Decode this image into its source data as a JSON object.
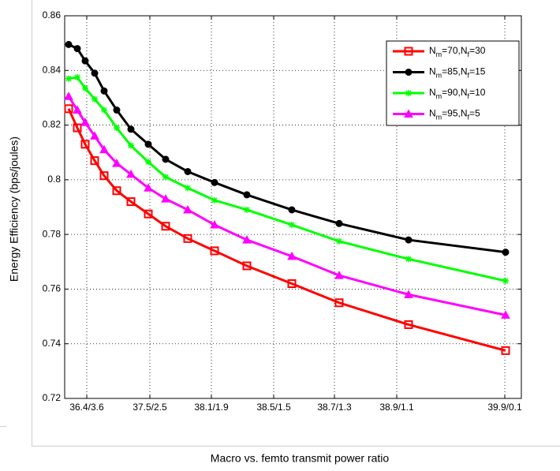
{
  "chart_data": {
    "type": "line",
    "x_label": "Macro vs. femto transmit power ratio",
    "y_label": "Energy Efficiency (bps/joules)",
    "x": [
      0.5,
      1.6,
      2.6,
      3.8,
      5.0,
      6.6,
      8.4,
      10.6,
      12.8,
      15.6,
      19.0,
      23.1,
      28.8,
      34.8,
      43.6,
      55.9
    ],
    "xlim": [
      0,
      57.9
    ],
    "xticks": [
      {
        "value": 2.8,
        "label": "36.4/3.6"
      },
      {
        "value": 10.8,
        "label": "37.5/2.5"
      },
      {
        "value": 18.6,
        "label": "38.1/1.9"
      },
      {
        "value": 26.5,
        "label": "38.5/1.5"
      },
      {
        "value": 34.2,
        "label": "38.7/1.3"
      },
      {
        "value": 42.1,
        "label": "38.9/1.1"
      },
      {
        "value": 55.8,
        "label": "39.9/0.1"
      }
    ],
    "ylim": [
      0.72,
      0.86
    ],
    "yticks": [
      0.72,
      0.74,
      0.76,
      0.78,
      0.8,
      0.82,
      0.84,
      0.86
    ],
    "grid": true,
    "legend": "upper right",
    "series": [
      {
        "name": "Nm=70,Nf=30",
        "color": "#ff0000",
        "marker": "square",
        "values": [
          0.826,
          0.819,
          0.813,
          0.807,
          0.8015,
          0.796,
          0.792,
          0.7875,
          0.783,
          0.7785,
          0.774,
          0.7685,
          0.762,
          0.755,
          0.747,
          0.7375
        ]
      },
      {
        "name": "Nm=85,Nf=15",
        "color": "#000000",
        "marker": "circle",
        "values": [
          0.8495,
          0.848,
          0.8435,
          0.839,
          0.8325,
          0.8255,
          0.8185,
          0.813,
          0.8075,
          0.803,
          0.799,
          0.7945,
          0.789,
          0.784,
          0.778,
          0.7735
        ]
      },
      {
        "name": "Nm=90,Nf=10",
        "color": "#00ff00",
        "marker": "star",
        "values": [
          0.837,
          0.8375,
          0.8335,
          0.8295,
          0.8255,
          0.819,
          0.8125,
          0.8065,
          0.801,
          0.797,
          0.7925,
          0.789,
          0.7835,
          0.7775,
          0.771,
          0.763
        ]
      },
      {
        "name": "Nm=95,Nf=5",
        "color": "#ff00ff",
        "marker": "triangle",
        "values": [
          0.8305,
          0.8255,
          0.821,
          0.816,
          0.811,
          0.806,
          0.802,
          0.797,
          0.793,
          0.789,
          0.7835,
          0.778,
          0.772,
          0.765,
          0.758,
          0.7505
        ]
      }
    ]
  }
}
